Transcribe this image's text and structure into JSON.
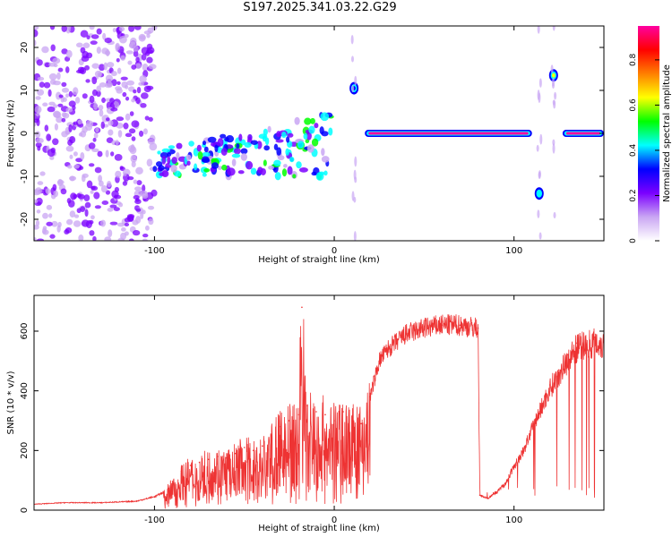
{
  "page_title": "S197.2025.341.03.22.G29",
  "chart_data": [
    {
      "type": "heatmap",
      "title": "S197.2025.341.03.22.G29",
      "xlabel": "Height of straight line (km)",
      "ylabel": "Frequency (Hz)",
      "xlim": [
        -167,
        150
      ],
      "ylim": [
        -25,
        25
      ],
      "x_ticks": [
        -100,
        0,
        100
      ],
      "y_ticks": [
        -20,
        -10,
        0,
        10,
        20
      ],
      "colorbar": {
        "label": "Normalized spectral amplitude",
        "range": [
          0,
          0.95
        ],
        "ticks": [
          0,
          0.2,
          0.4,
          0.6,
          0.8
        ],
        "colors": [
          "#ffffff",
          "#c9a6f3",
          "#7b00ff",
          "#0000ff",
          "#00ffff",
          "#00ff00",
          "#ffff00",
          "#ff7f00",
          "#ff0000",
          "#ff00a0"
        ]
      },
      "features": [
        {
          "name": "noise field",
          "x_range": [
            -167,
            -100
          ],
          "freq_range": [
            -25,
            25
          ],
          "amplitude": 0.15
        },
        {
          "name": "scattered low amplitude",
          "x_range": [
            -100,
            0
          ],
          "freq_range": [
            -10,
            5
          ],
          "amplitude": 0.4
        },
        {
          "name": "peak",
          "x": 11,
          "freq": 10.5,
          "amplitude": 0.35
        },
        {
          "name": "carrier line",
          "x_range": [
            17,
            110
          ],
          "freq": 0,
          "amplitude": 0.9
        },
        {
          "name": "peak",
          "x": 114,
          "freq": -14,
          "amplitude": 0.4
        },
        {
          "name": "peak",
          "x": 122,
          "freq": 13.5,
          "amplitude": 0.65
        },
        {
          "name": "carrier line",
          "x_range": [
            127,
            150
          ],
          "freq": 0,
          "amplitude": 0.9
        }
      ]
    },
    {
      "type": "line",
      "xlabel": "Height of straight line (km)",
      "ylabel": "SNR (10 * v/v)",
      "xlim": [
        -167,
        150
      ],
      "ylim": [
        0,
        720
      ],
      "x_ticks": [
        -100,
        0,
        100
      ],
      "y_ticks": [
        0,
        200,
        400,
        600
      ],
      "series": [
        {
          "name": "SNR",
          "color": "#ee3333",
          "x": [
            -167,
            -150,
            -130,
            -110,
            -100,
            -95,
            -90,
            -85,
            -80,
            -75,
            -70,
            -65,
            -60,
            -55,
            -50,
            -45,
            -40,
            -35,
            -30,
            -25,
            -20,
            -18,
            -15,
            -10,
            -5,
            0,
            5,
            10,
            15,
            20,
            25,
            30,
            40,
            50,
            60,
            70,
            80,
            81,
            85,
            90,
            95,
            100,
            105,
            110,
            115,
            120,
            125,
            130,
            135,
            140,
            145,
            150
          ],
          "y": [
            20,
            25,
            25,
            30,
            45,
            60,
            90,
            130,
            150,
            160,
            170,
            180,
            175,
            190,
            210,
            200,
            215,
            240,
            280,
            300,
            320,
            680,
            350,
            330,
            320,
            300,
            330,
            300,
            290,
            380,
            500,
            540,
            590,
            610,
            620,
            620,
            610,
            50,
            40,
            60,
            90,
            150,
            200,
            280,
            350,
            420,
            470,
            520,
            560,
            570,
            580,
            570
          ]
        }
      ]
    }
  ]
}
